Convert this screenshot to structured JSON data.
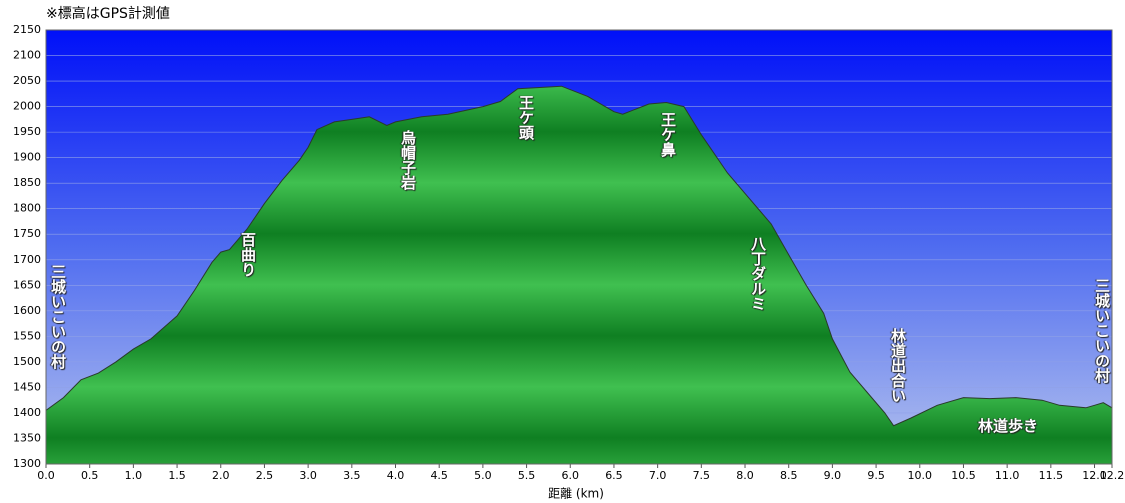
{
  "chart_data": {
    "type": "area",
    "title": "※標高はGPS計測値",
    "x_label": "距離 (km)",
    "x": [
      0,
      0.2,
      0.4,
      0.6,
      0.8,
      1.0,
      1.2,
      1.5,
      1.7,
      1.9,
      2.0,
      2.1,
      2.3,
      2.5,
      2.7,
      2.9,
      3.0,
      3.1,
      3.3,
      3.5,
      3.7,
      3.9,
      4.0,
      4.3,
      4.6,
      5.0,
      5.2,
      5.4,
      5.6,
      5.9,
      6.2,
      6.5,
      6.6,
      6.9,
      7.1,
      7.3,
      7.5,
      7.8,
      8.0,
      8.3,
      8.5,
      8.7,
      8.9,
      9.0,
      9.2,
      9.4,
      9.6,
      9.7,
      9.9,
      10.2,
      10.5,
      10.8,
      11.1,
      11.4,
      11.6,
      11.9,
      12.0,
      12.1,
      12.2
    ],
    "values": [
      1405,
      1430,
      1465,
      1478,
      1500,
      1525,
      1545,
      1590,
      1640,
      1695,
      1715,
      1720,
      1760,
      1810,
      1855,
      1895,
      1920,
      1955,
      1970,
      1975,
      1980,
      1963,
      1970,
      1980,
      1985,
      2000,
      2010,
      2035,
      2037,
      2040,
      2020,
      1990,
      1985,
      2005,
      2008,
      2000,
      1945,
      1870,
      1830,
      1770,
      1710,
      1650,
      1595,
      1545,
      1480,
      1440,
      1400,
      1375,
      1390,
      1415,
      1430,
      1428,
      1430,
      1425,
      1415,
      1410,
      1415,
      1420,
      1410
    ],
    "xlim": [
      0,
      12.2
    ],
    "xticks": [
      {
        "value": 0,
        "label": "0.0"
      },
      0.5,
      {
        "value": 1,
        "label": "1.0"
      },
      1.5,
      {
        "value": 2,
        "label": "2.0"
      },
      2.5,
      {
        "value": 3,
        "label": "3.0"
      },
      3.5,
      {
        "value": 4,
        "label": "4.0"
      },
      4.5,
      {
        "value": 5,
        "label": "5.0"
      },
      5.5,
      {
        "value": 6,
        "label": "6.0"
      },
      6.5,
      {
        "value": 7,
        "label": "7.0"
      },
      7.5,
      {
        "value": 8,
        "label": "8.0"
      },
      8.5,
      {
        "value": 9,
        "label": "9.0"
      },
      9.5,
      {
        "value": 10,
        "label": "10.0"
      },
      10.5,
      {
        "value": 11,
        "label": "11.0"
      },
      11.5,
      {
        "value": 12,
        "label": "12.0"
      },
      12.2
    ],
    "ylim": [
      1300,
      2150
    ],
    "yticks": [
      1300,
      1350,
      1400,
      1450,
      1500,
      1550,
      1600,
      1650,
      1700,
      1750,
      1800,
      1850,
      1900,
      1950,
      2000,
      2050,
      2100,
      2150
    ],
    "grid": true,
    "annotations": [
      "三城いこいの村",
      "百曲り",
      "烏帽子岩",
      "王ケ頭",
      "王ケ鼻",
      "八丁ダルミ",
      "林道出合い",
      "林道歩き",
      "三城いこいの村"
    ]
  }
}
